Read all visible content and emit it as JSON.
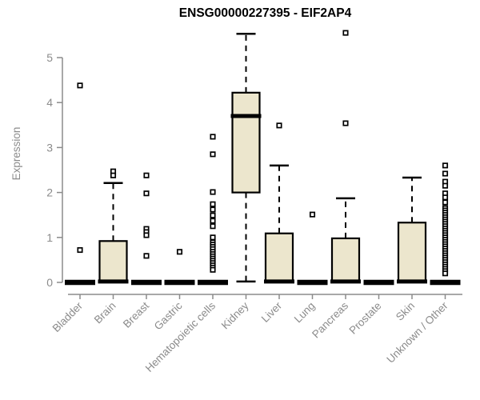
{
  "chart_data": {
    "type": "boxplot",
    "title": "ENSG00000227395 - EIF2AP4",
    "ylabel": "Expression",
    "xlabel": "",
    "ylim": [
      0,
      5
    ],
    "yticks": [
      0,
      1,
      2,
      3,
      4,
      5
    ],
    "grid": false,
    "legend": "none",
    "box_fill": "#ece6cd",
    "box_stroke": "#000000",
    "axis_color": "#8b8b8b",
    "background": "#ffffff",
    "categories": [
      "Bladder",
      "Brain",
      "Breast",
      "Gastric",
      "Hematopoietic cells",
      "Kidney",
      "Liver",
      "Lung",
      "Pancreas",
      "Prostate",
      "Skin",
      "Unknown / Other"
    ],
    "series": [
      {
        "category": "Bladder",
        "q1": 0,
        "median": 0,
        "q3": 0,
        "whisker_low": 0,
        "whisker_high": 0,
        "outliers": [
          4.38,
          0.72
        ]
      },
      {
        "category": "Brain",
        "q1": 0,
        "median": 0.02,
        "q3": 0.92,
        "whisker_low": 0,
        "whisker_high": 2.21,
        "outliers": [
          2.47,
          2.38
        ]
      },
      {
        "category": "Breast",
        "q1": 0,
        "median": 0,
        "q3": 0,
        "whisker_low": 0,
        "whisker_high": 0,
        "outliers": [
          2.38,
          1.98,
          1.19,
          1.12,
          1.05,
          0.59
        ]
      },
      {
        "category": "Gastric",
        "q1": 0,
        "median": 0,
        "q3": 0,
        "whisker_low": 0,
        "whisker_high": 0,
        "outliers": [
          0.68
        ]
      },
      {
        "category": "Hematopoietic cells",
        "q1": 0,
        "median": 0,
        "q3": 0,
        "whisker_low": 0,
        "whisker_high": 0,
        "outliers": [
          3.24,
          2.85,
          2.01,
          1.74,
          1.62,
          1.49,
          1.37,
          1.25,
          1.0,
          0.89,
          0.84,
          0.79,
          0.74,
          0.68,
          0.63,
          0.58,
          0.53,
          0.48,
          0.43,
          0.38,
          0.33,
          0.28
        ]
      },
      {
        "category": "Kidney",
        "q1": 2.0,
        "median": 3.7,
        "q3": 4.22,
        "whisker_low": 0.02,
        "whisker_high": 5.53,
        "outliers": []
      },
      {
        "category": "Liver",
        "q1": 0,
        "median": 0.02,
        "q3": 1.09,
        "whisker_low": 0,
        "whisker_high": 2.6,
        "outliers": [
          3.49
        ]
      },
      {
        "category": "Lung",
        "q1": 0,
        "median": 0,
        "q3": 0,
        "whisker_low": 0,
        "whisker_high": 0,
        "outliers": [
          1.51
        ]
      },
      {
        "category": "Pancreas",
        "q1": 0,
        "median": 0.02,
        "q3": 0.98,
        "whisker_low": 0,
        "whisker_high": 1.87,
        "outliers": [
          5.55,
          3.54
        ]
      },
      {
        "category": "Prostate",
        "q1": 0,
        "median": 0,
        "q3": 0,
        "whisker_low": 0,
        "whisker_high": 0,
        "outliers": []
      },
      {
        "category": "Skin",
        "q1": 0,
        "median": 0.02,
        "q3": 1.33,
        "whisker_low": 0,
        "whisker_high": 2.33,
        "outliers": []
      },
      {
        "category": "Unknown / Other",
        "q1": 0,
        "median": 0,
        "q3": 0,
        "whisker_low": 0,
        "whisker_high": 0,
        "outliers": [
          2.6,
          2.42,
          2.24,
          2.15,
          1.98,
          1.89,
          1.78,
          1.65,
          1.6,
          1.55,
          1.5,
          1.45,
          1.4,
          1.35,
          1.3,
          1.25,
          1.2,
          1.15,
          1.1,
          1.05,
          1.0,
          0.95,
          0.9,
          0.85,
          0.8,
          0.75,
          0.7,
          0.65,
          0.6,
          0.55,
          0.5,
          0.45,
          0.4,
          0.35,
          0.3,
          0.25,
          0.2
        ]
      }
    ]
  }
}
